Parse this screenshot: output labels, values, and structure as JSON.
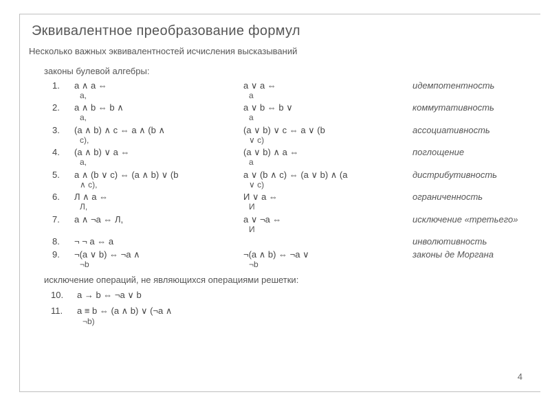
{
  "page": {
    "title": "Эквивалентное преобразование формул",
    "subtitle": "Несколько важных эквивалентностей исчисления высказываний",
    "section1_label": "законы булевой алгебры:",
    "section2_label": "исключение операций, не являющихся операциями решетки:",
    "page_number": "4",
    "rule_color": "#bfbfbf",
    "text_color": "#444444",
    "title_color": "#565656",
    "italic_color": "#555555",
    "font_size_title": 20,
    "font_size_body": 13
  },
  "rows": [
    {
      "num": "1.",
      "c1a": "a ∧ a  ⇔",
      "c1b": "a,",
      "c2a": "a ∨ a  ⇔",
      "c2b": "a",
      "c3": "идемпотентность"
    },
    {
      "num": "2.",
      "c1a": "a ∧ b  ⇔  b ∧",
      "c1b": "a,",
      "c2a": "a ∨ b  ⇔  b ∨",
      "c2b": "a",
      "c3": "коммутативность"
    },
    {
      "num": "3.",
      "c1a": "(a ∧ b) ∧ c  ⇔  a ∧ (b ∧",
      "c1b": "c),",
      "c2a": "(a ∨ b) ∨ c  ⇔  a ∨ (b",
      "c2b": "∨ c)",
      "c3": "ассоциативность"
    },
    {
      "num": "4.",
      "c1a": "(a ∧ b) ∨ a  ⇔",
      "c1b": "a,",
      "c2a": "(a ∨ b) ∧ a  ⇔",
      "c2b": "a",
      "c3": "поглощение"
    },
    {
      "num": "5.",
      "c1a": "a ∧ (b ∨ c)  ⇔  (a ∧ b) ∨ (b",
      "c1b": "∧ c),",
      "c2a": "a ∨ (b ∧ c)  ⇔  (a ∨ b) ∧ (a",
      "c2b": "∨ c)",
      "c3": "дистрибутивность"
    },
    {
      "num": "6.",
      "c1a": "Л ∧ a  ⇔",
      "c1b": "Л,",
      "c2a": "И ∨ a  ⇔",
      "c2b": "И",
      "c3": "ограниченность"
    },
    {
      "num": "7.",
      "c1a": "a ∧ ¬a  ⇔  Л,",
      "c1b": "",
      "c2a": "a ∨ ¬a  ⇔",
      "c2b": "И",
      "c3": "исключение «третьего»"
    },
    {
      "num": "8.",
      "c1a": "¬ ¬ a  ⇔  a",
      "c1b": "",
      "c2a": "",
      "c2b": "",
      "c3": "инволютивность"
    },
    {
      "num": "9.",
      "c1a": "¬(a ∨ b)  ⇔  ¬a ∧",
      "c1b": "¬b",
      "c2a": "¬(a ∧ b)  ⇔  ¬a ∨",
      "c2b": "¬b",
      "c3": "законы де Моргана"
    }
  ],
  "rows2": [
    {
      "num": "10.",
      "c1a": "a → b  ⇔  ¬a ∨ b",
      "c1b": ""
    },
    {
      "num": "11.",
      "c1a": "a ≡ b  ⇔  (a ∧ b) ∨ (¬a ∧",
      "c1b": "¬b)"
    }
  ]
}
